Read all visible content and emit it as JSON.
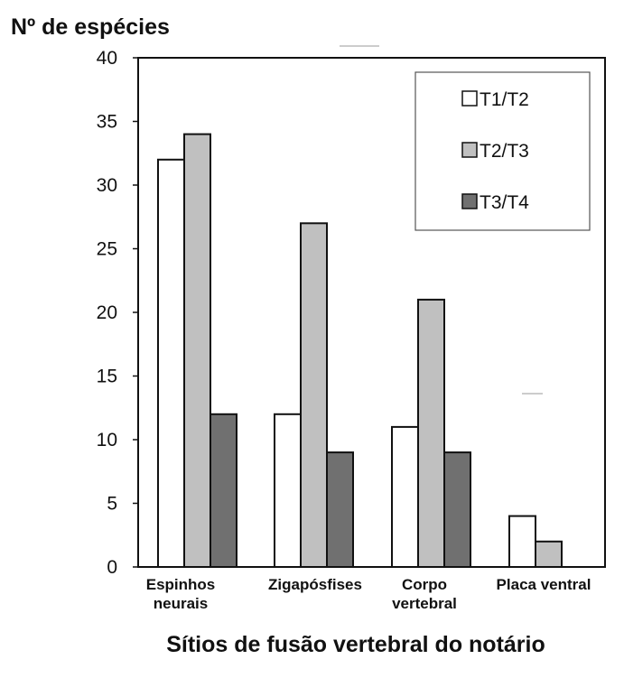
{
  "chart_data": {
    "type": "bar",
    "title": "",
    "ylabel": "Nº de espécies",
    "xlabel": "Sítios de fusão vertebral do notário",
    "ylim": [
      0,
      40
    ],
    "yticks": [
      0,
      5,
      10,
      15,
      20,
      25,
      30,
      35,
      40
    ],
    "categories": [
      [
        "Espinhos",
        "neurais"
      ],
      [
        "Zigapósfises"
      ],
      [
        "Corpo",
        "vertebral"
      ],
      [
        "Placa ventral"
      ]
    ],
    "series": [
      {
        "name": "T1/T2",
        "color": "#ffffff",
        "values": [
          32,
          12,
          11,
          4
        ]
      },
      {
        "name": "T2/T3",
        "color": "#c0c0c0",
        "values": [
          34,
          27,
          21,
          2
        ]
      },
      {
        "name": "T3/T4",
        "color": "#707070",
        "values": [
          12,
          9,
          9,
          0
        ]
      }
    ],
    "legend_position": "top-right",
    "grid": false
  }
}
